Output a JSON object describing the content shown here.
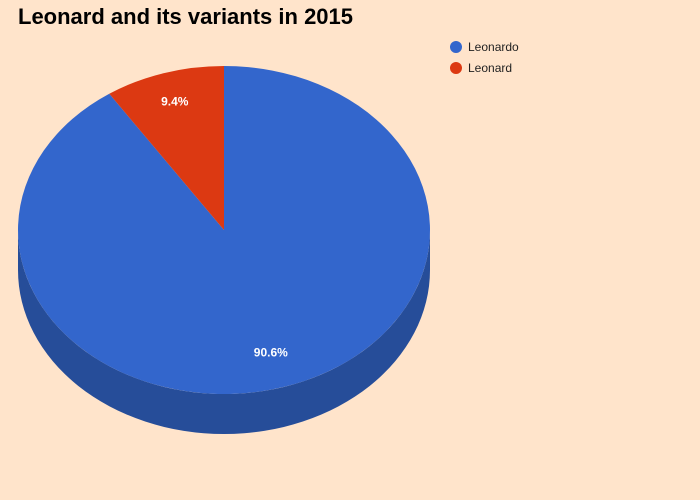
{
  "title": "Leonard and its variants in 2015",
  "chart_data": {
    "type": "pie",
    "title": "Leonard and its variants in 2015",
    "is_3d": true,
    "legend_position": "top-right",
    "slices": [
      {
        "name": "Leonardo",
        "value": 90.6,
        "label": "90.6%",
        "color": "#3366cc",
        "side_color": "#264d99"
      },
      {
        "name": "Leonard",
        "value": 9.4,
        "label": "9.4%",
        "color": "#dc3912",
        "side_color": "#a52b0e"
      }
    ]
  }
}
